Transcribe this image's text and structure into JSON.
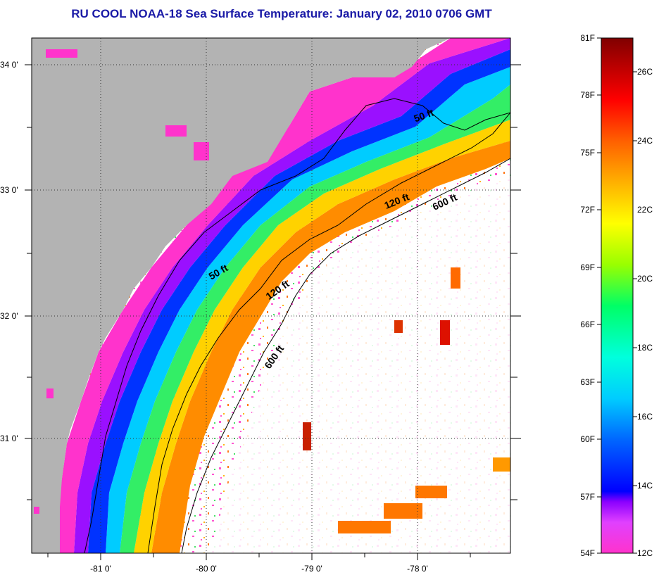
{
  "title": "RU COOL  NOAA-18  Sea Surface Temperature:  January 02, 2010 0706 GMT",
  "latitude_labels": [
    "34 0'",
    "33 0'",
    "32 0'",
    "31 0'"
  ],
  "longitude_labels": [
    "-81 0'",
    "-80 0'",
    "-79 0'",
    "-78 0'"
  ],
  "depth_contours": [
    {
      "label": "50 ft"
    },
    {
      "label": "50 ft"
    },
    {
      "label": "120 ft"
    },
    {
      "label": "120 ft"
    },
    {
      "label": "600 ft"
    },
    {
      "label": "600 ft"
    }
  ],
  "colorbar": {
    "fahrenheit": [
      "81F",
      "78F",
      "75F",
      "72F",
      "69F",
      "66F",
      "63F",
      "60F",
      "57F",
      "54F"
    ],
    "celsius": [
      "26C",
      "24C",
      "22C",
      "20C",
      "18C",
      "16C",
      "14C",
      "12C"
    ],
    "colors": [
      "#ff44cc",
      "#a000ff",
      "#0000ff",
      "#00aaff",
      "#00ffee",
      "#00ff60",
      "#b0ff00",
      "#ffff00",
      "#ffaa00",
      "#ff4000",
      "#ff0000",
      "#800000"
    ]
  },
  "colors": {
    "land": "#b3b3b3",
    "title": "#1a1aa6",
    "cloud": "#ffffff"
  }
}
